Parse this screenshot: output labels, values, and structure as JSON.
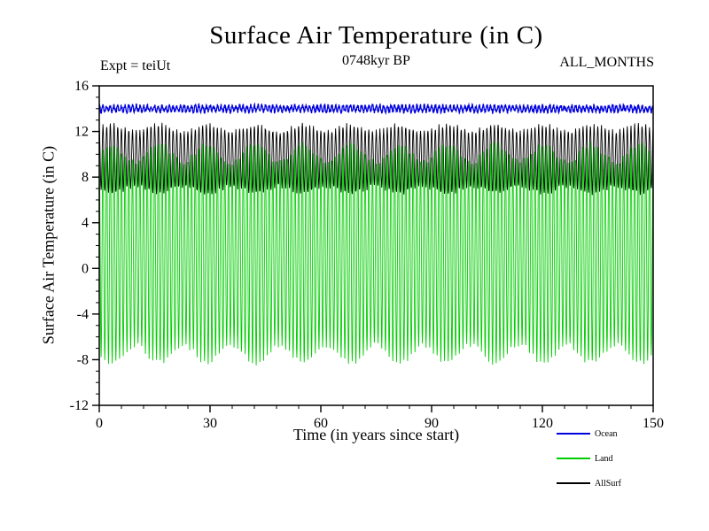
{
  "chart_data": {
    "type": "line",
    "title": "Surface Air Temperature (in C)",
    "subtitle": "0748kyr BP",
    "experiment_label": "Expt = teiUt",
    "months_label": "ALL_MONTHS",
    "xlabel": "Time (in years since start)",
    "ylabel": "Surface Air Temperature (in C)",
    "xlim": [
      0,
      150
    ],
    "ylim": [
      -12,
      16
    ],
    "xticks": [
      0,
      30,
      60,
      90,
      120,
      150
    ],
    "yticks": [
      -12,
      -8,
      -4,
      0,
      4,
      8,
      12,
      16
    ],
    "x_minor_step": 6,
    "y_minor_step": 1,
    "grid": false,
    "sampling": "monthly values, 12 points per year over 150 years (1800 points per series)",
    "series": [
      {
        "name": "Ocean",
        "color": "#0000dd",
        "mean": 14.0,
        "seasonal_amplitude": 0.25,
        "amplitude_modulation": 0.0,
        "modulation_period_years": 13,
        "noise": 0.18,
        "linewidth": 1.3,
        "approx_range": [
          13.6,
          14.5
        ]
      },
      {
        "name": "Land",
        "color": "#00cc00",
        "mean": 1.3,
        "seasonal_amplitude": 8.8,
        "amplitude_modulation": 0.8,
        "modulation_period_years": 13,
        "noise": 0.25,
        "linewidth": 0.9,
        "approx_range": [
          -8.6,
          11.1
        ]
      },
      {
        "name": "AllSurf",
        "color": "#000000",
        "mean": 9.6,
        "seasonal_amplitude": 2.7,
        "amplitude_modulation": 0.3,
        "modulation_period_years": 13,
        "noise": 0.2,
        "linewidth": 0.9,
        "approx_range": [
          6.4,
          12.8
        ]
      }
    ],
    "legend": [
      {
        "label": "Ocean",
        "color": "#0000dd"
      },
      {
        "label": "Land",
        "color": "#00cc00"
      },
      {
        "label": "AllSurf",
        "color": "#000000"
      }
    ],
    "legend_position": "bottom-right"
  }
}
